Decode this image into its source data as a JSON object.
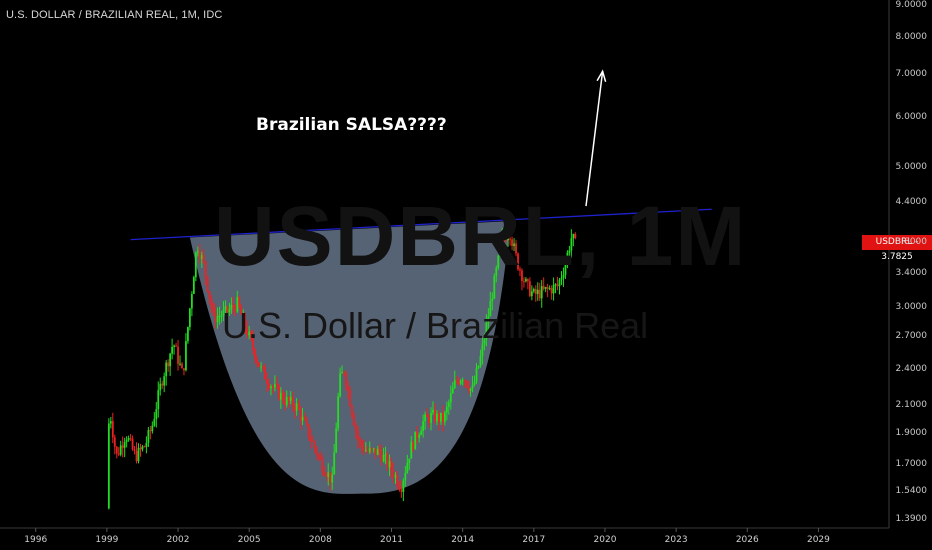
{
  "header": {
    "title": "U.S. DOLLAR / BRAZILIAN REAL, 1M, IDC"
  },
  "watermark": {
    "symbol": "USDBRL, 1M",
    "name": "U.S. Dollar / Brazilian Real"
  },
  "annotation": {
    "text": "Brazilian SALSA????"
  },
  "price_label": {
    "text": "USDBRL - 3.7825",
    "color": "#e01212"
  },
  "colors": {
    "up": "#22dd22",
    "down": "#ee2222",
    "trendline": "#1e22cc",
    "cup_fill": "#8aa0bc",
    "arrow": "#ffffff"
  },
  "chart_data": {
    "type": "candlestick",
    "scale": "log",
    "title": "U.S. DOLLAR / BRAZILIAN REAL, 1M, IDC",
    "x_ticks": [
      "1996",
      "1999",
      "2002",
      "2005",
      "2008",
      "2011",
      "2014",
      "2017",
      "2020",
      "2023",
      "2026",
      "2029"
    ],
    "y_ticks": [
      "9.0000",
      "8.0000",
      "7.0000",
      "6.0000",
      "5.0000",
      "4.4000",
      "3.8000",
      "3.4000",
      "3.0000",
      "2.7000",
      "2.4000",
      "2.1000",
      "1.9000",
      "1.7000",
      "1.5400",
      "1.3900"
    ],
    "ylim": [
      1.39,
      9.0
    ],
    "xlim": [
      1995.0,
      2032.0
    ],
    "last_price": 3.7825,
    "price_path": [
      [
        1999.0,
        1.45
      ],
      [
        1999.1,
        2.1
      ],
      [
        1999.4,
        1.75
      ],
      [
        1999.8,
        1.9
      ],
      [
        2000.2,
        1.75
      ],
      [
        2000.6,
        1.82
      ],
      [
        2000.9,
        1.95
      ],
      [
        2001.3,
        2.3
      ],
      [
        2001.8,
        2.65
      ],
      [
        2002.2,
        2.35
      ],
      [
        2002.5,
        3.0
      ],
      [
        2002.8,
        3.8
      ],
      [
        2003.1,
        3.5
      ],
      [
        2003.5,
        2.9
      ],
      [
        2004.0,
        2.95
      ],
      [
        2004.5,
        3.05
      ],
      [
        2005.0,
        2.7
      ],
      [
        2005.5,
        2.4
      ],
      [
        2006.0,
        2.25
      ],
      [
        2006.5,
        2.15
      ],
      [
        2007.0,
        2.1
      ],
      [
        2007.5,
        1.9
      ],
      [
        2008.0,
        1.72
      ],
      [
        2008.5,
        1.6
      ],
      [
        2008.8,
        2.3
      ],
      [
        2009.0,
        2.4
      ],
      [
        2009.3,
        2.1
      ],
      [
        2009.6,
        1.85
      ],
      [
        2010.0,
        1.78
      ],
      [
        2010.5,
        1.78
      ],
      [
        2011.0,
        1.67
      ],
      [
        2011.4,
        1.57
      ],
      [
        2011.8,
        1.8
      ],
      [
        2012.3,
        1.98
      ],
      [
        2012.7,
        2.03
      ],
      [
        2013.2,
        2.0
      ],
      [
        2013.7,
        2.3
      ],
      [
        2014.0,
        2.35
      ],
      [
        2014.4,
        2.22
      ],
      [
        2014.8,
        2.55
      ],
      [
        2015.2,
        3.1
      ],
      [
        2015.7,
        3.9
      ],
      [
        2016.0,
        3.95
      ],
      [
        2016.3,
        3.55
      ],
      [
        2016.7,
        3.25
      ],
      [
        2017.0,
        3.15
      ],
      [
        2017.5,
        3.2
      ],
      [
        2018.0,
        3.25
      ],
      [
        2018.3,
        3.5
      ],
      [
        2018.6,
        3.9
      ],
      [
        2018.75,
        3.7825
      ]
    ],
    "trendline": [
      [
        2000.0,
        3.85
      ],
      [
        2024.5,
        4.3
      ]
    ],
    "cup_rim": [
      [
        2002.5,
        3.88
      ],
      [
        2016.0,
        4.12
      ]
    ],
    "cup_bottom": [
      2010.0,
      1.53
    ],
    "arrow": [
      [
        2019.2,
        4.35
      ],
      [
        2019.9,
        7.1
      ]
    ]
  }
}
